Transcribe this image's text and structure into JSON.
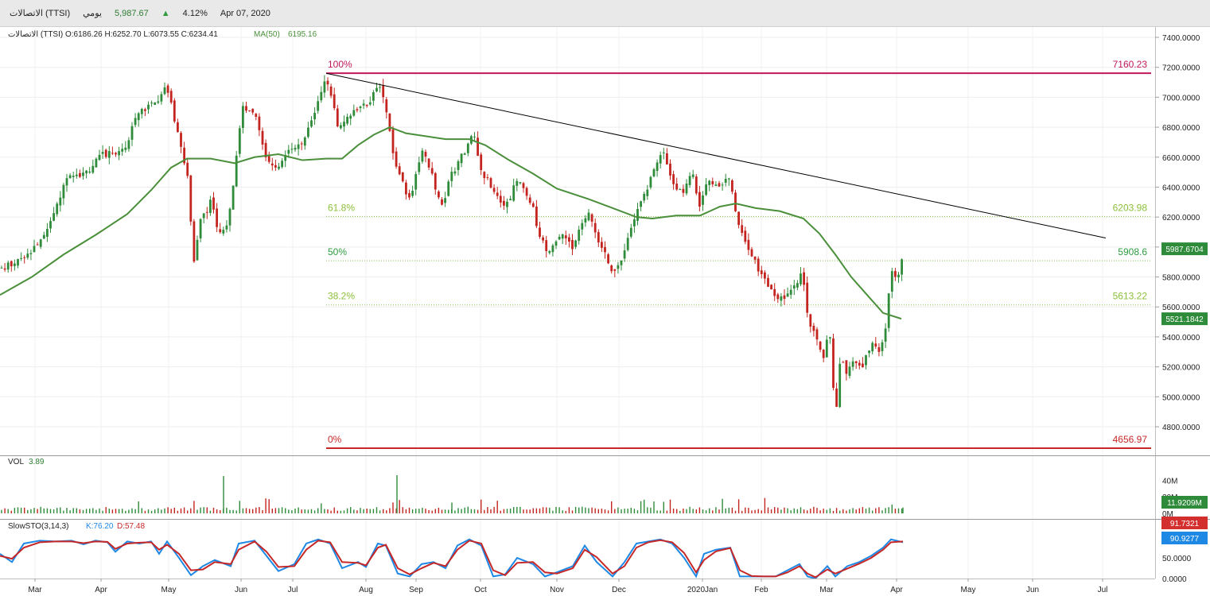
{
  "header": {
    "symbol": "الاتصالات (TTSI)",
    "period": "يومي",
    "last_price": "5,987.67",
    "change_pct": "4.12%",
    "date": "Apr 07, 2020"
  },
  "legend": {
    "ohlc": "الاتصالات (TTSI)  O:6186.26  H:6252.70  L:6073.55  C:6234.41",
    "ma_label": "MA(50)",
    "ma_value": "6195.16"
  },
  "volume_panel": {
    "label": "VOL",
    "value": "3.89",
    "axis_ticks": [
      "40M",
      "20M",
      "0M"
    ],
    "badge": "11.9209M"
  },
  "stoch_panel": {
    "label": "SlowSTO(3,14,3)",
    "k_label": "K:76.20",
    "d_label": "D:57.48",
    "axis_ticks": [
      "50.0000",
      "0.0000"
    ],
    "badge_d": "91.7321",
    "badge_k": "90.9277"
  },
  "colors": {
    "up_candle": "#2e8b3a",
    "down_candle": "#c4241f",
    "ma_line": "#4a8f3a",
    "fib_100": "#c2185b",
    "fib_0": "#c62828",
    "fib_mid": "#8bc34a",
    "trendline": "#000000",
    "stoch_k": "#1e88e5",
    "stoch_d": "#c62828"
  },
  "chart_data": {
    "type": "candlestick",
    "x_axis": {
      "labels": [
        "Mar",
        "Apr",
        "May",
        "Jun",
        "Jul",
        "Aug",
        "Sep",
        "Oct",
        "Nov",
        "Dec",
        "2020Jan",
        "Feb",
        "Mar",
        "Apr",
        "May",
        "Jun",
        "Jul"
      ]
    },
    "y_axis": {
      "ticks": [
        "7400.0000",
        "7200.0000",
        "7000.0000",
        "6800.0000",
        "6600.0000",
        "6400.0000",
        "6200.0000",
        "6000.0000",
        "5800.0000",
        "5600.0000",
        "5400.0000",
        "5200.0000",
        "5000.0000",
        "4800.0000"
      ],
      "range": [
        4600,
        7500
      ],
      "last_price_badge": "5987.6704",
      "ma_badge": "5521.1842"
    },
    "close_path": [
      [
        0,
        5850
      ],
      [
        30,
        5920
      ],
      [
        60,
        6100
      ],
      [
        85,
        6500
      ],
      [
        105,
        6480
      ],
      [
        130,
        6620
      ],
      [
        155,
        6650
      ],
      [
        175,
        6900
      ],
      [
        200,
        6980
      ],
      [
        210,
        7080
      ],
      [
        222,
        6800
      ],
      [
        235,
        6500
      ],
      [
        245,
        5850
      ],
      [
        250,
        6150
      ],
      [
        265,
        6300
      ],
      [
        278,
        6050
      ],
      [
        290,
        6250
      ],
      [
        305,
        6950
      ],
      [
        320,
        6900
      ],
      [
        335,
        6600
      ],
      [
        345,
        6500
      ],
      [
        360,
        6650
      ],
      [
        380,
        6700
      ],
      [
        395,
        6900
      ],
      [
        410,
        7150
      ],
      [
        425,
        6800
      ],
      [
        440,
        6900
      ],
      [
        460,
        6950
      ],
      [
        480,
        7080
      ],
      [
        490,
        6750
      ],
      [
        500,
        6500
      ],
      [
        515,
        6300
      ],
      [
        530,
        6650
      ],
      [
        545,
        6450
      ],
      [
        555,
        6250
      ],
      [
        565,
        6450
      ],
      [
        580,
        6600
      ],
      [
        595,
        6750
      ],
      [
        605,
        6500
      ],
      [
        620,
        6400
      ],
      [
        635,
        6250
      ],
      [
        650,
        6450
      ],
      [
        670,
        6250
      ],
      [
        680,
        6050
      ],
      [
        690,
        5950
      ],
      [
        705,
        6100
      ],
      [
        720,
        6000
      ],
      [
        740,
        6250
      ],
      [
        755,
        6000
      ],
      [
        770,
        5850
      ],
      [
        780,
        5900
      ],
      [
        795,
        6150
      ],
      [
        810,
        6350
      ],
      [
        820,
        6500
      ],
      [
        832,
        6650
      ],
      [
        845,
        6450
      ],
      [
        858,
        6350
      ],
      [
        870,
        6500
      ],
      [
        880,
        6250
      ],
      [
        890,
        6450
      ],
      [
        905,
        6420
      ],
      [
        918,
        6480
      ],
      [
        925,
        6200
      ],
      [
        935,
        6050
      ],
      [
        945,
        5950
      ],
      [
        958,
        5800
      ],
      [
        970,
        5700
      ],
      [
        985,
        5650
      ],
      [
        1000,
        5750
      ],
      [
        1008,
        5850
      ],
      [
        1015,
        5550
      ],
      [
        1025,
        5400
      ],
      [
        1035,
        5250
      ],
      [
        1043,
        5450
      ],
      [
        1050,
        4850
      ],
      [
        1057,
        5300
      ],
      [
        1065,
        5150
      ],
      [
        1075,
        5250
      ],
      [
        1085,
        5200
      ],
      [
        1095,
        5350
      ],
      [
        1105,
        5300
      ],
      [
        1113,
        5450
      ],
      [
        1120,
        5850
      ],
      [
        1128,
        5750
      ],
      [
        1135,
        5988
      ]
    ],
    "ma50": {
      "name": "MA(50)",
      "path": [
        [
          0,
          5680
        ],
        [
          40,
          5800
        ],
        [
          80,
          5950
        ],
        [
          120,
          6080
        ],
        [
          160,
          6220
        ],
        [
          190,
          6380
        ],
        [
          215,
          6530
        ],
        [
          235,
          6590
        ],
        [
          265,
          6590
        ],
        [
          295,
          6560
        ],
        [
          320,
          6600
        ],
        [
          350,
          6620
        ],
        [
          380,
          6580
        ],
        [
          410,
          6590
        ],
        [
          430,
          6590
        ],
        [
          450,
          6680
        ],
        [
          470,
          6750
        ],
        [
          490,
          6800
        ],
        [
          510,
          6760
        ],
        [
          535,
          6740
        ],
        [
          560,
          6720
        ],
        [
          590,
          6720
        ],
        [
          610,
          6680
        ],
        [
          640,
          6580
        ],
        [
          670,
          6490
        ],
        [
          700,
          6390
        ],
        [
          740,
          6320
        ],
        [
          770,
          6260
        ],
        [
          800,
          6200
        ],
        [
          820,
          6190
        ],
        [
          850,
          6210
        ],
        [
          880,
          6210
        ],
        [
          905,
          6270
        ],
        [
          925,
          6290
        ],
        [
          950,
          6260
        ],
        [
          980,
          6240
        ],
        [
          1010,
          6190
        ],
        [
          1030,
          6090
        ],
        [
          1050,
          5950
        ],
        [
          1070,
          5800
        ],
        [
          1090,
          5680
        ],
        [
          1110,
          5560
        ],
        [
          1133,
          5521
        ]
      ]
    },
    "trendline": [
      [
        410,
        7160
      ],
      [
        1390,
        6060
      ]
    ],
    "fibonacci": {
      "x_start": 410,
      "x_end": 1447,
      "levels": [
        {
          "label": "100%",
          "price": 7160.23,
          "price_label": "7160.23",
          "style": "solid"
        },
        {
          "label": "61.8%",
          "price": 6203.98,
          "price_label": "6203.98",
          "style": "dotted"
        },
        {
          "label": "50%",
          "price": 5908.6,
          "price_label": "5908.6",
          "style": "dotted"
        },
        {
          "label": "38.2%",
          "price": 5613.22,
          "price_label": "5613.22",
          "style": "dotted"
        },
        {
          "label": "0%",
          "price": 4656.97,
          "price_label": "4656.97",
          "style": "solid"
        }
      ]
    },
    "volume_ylim": [
      0,
      46
    ],
    "stoch_ylim": [
      0,
      110
    ],
    "stoch_k_path": [
      [
        0,
        60
      ],
      [
        15,
        40
      ],
      [
        30,
        85
      ],
      [
        50,
        92
      ],
      [
        70,
        90
      ],
      [
        90,
        92
      ],
      [
        105,
        83
      ],
      [
        120,
        92
      ],
      [
        135,
        88
      ],
      [
        145,
        65
      ],
      [
        160,
        90
      ],
      [
        175,
        85
      ],
      [
        190,
        90
      ],
      [
        200,
        60
      ],
      [
        210,
        90
      ],
      [
        225,
        50
      ],
      [
        240,
        8
      ],
      [
        255,
        30
      ],
      [
        270,
        45
      ],
      [
        290,
        30
      ],
      [
        300,
        85
      ],
      [
        320,
        92
      ],
      [
        335,
        55
      ],
      [
        350,
        18
      ],
      [
        370,
        35
      ],
      [
        385,
        85
      ],
      [
        400,
        95
      ],
      [
        415,
        85
      ],
      [
        430,
        25
      ],
      [
        450,
        40
      ],
      [
        460,
        28
      ],
      [
        475,
        85
      ],
      [
        485,
        80
      ],
      [
        500,
        12
      ],
      [
        515,
        5
      ],
      [
        530,
        35
      ],
      [
        545,
        40
      ],
      [
        560,
        25
      ],
      [
        575,
        80
      ],
      [
        590,
        95
      ],
      [
        605,
        80
      ],
      [
        620,
        5
      ],
      [
        635,
        10
      ],
      [
        650,
        50
      ],
      [
        670,
        35
      ],
      [
        685,
        5
      ],
      [
        700,
        15
      ],
      [
        720,
        30
      ],
      [
        735,
        80
      ],
      [
        750,
        40
      ],
      [
        770,
        5
      ],
      [
        785,
        40
      ],
      [
        800,
        85
      ],
      [
        815,
        90
      ],
      [
        830,
        95
      ],
      [
        845,
        85
      ],
      [
        860,
        50
      ],
      [
        875,
        5
      ],
      [
        885,
        60
      ],
      [
        900,
        70
      ],
      [
        918,
        75
      ],
      [
        930,
        5
      ],
      [
        945,
        5
      ],
      [
        960,
        5
      ],
      [
        975,
        5
      ],
      [
        990,
        20
      ],
      [
        1005,
        35
      ],
      [
        1015,
        5
      ],
      [
        1025,
        0
      ],
      [
        1040,
        30
      ],
      [
        1050,
        5
      ],
      [
        1065,
        30
      ],
      [
        1080,
        40
      ],
      [
        1095,
        55
      ],
      [
        1110,
        75
      ],
      [
        1120,
        95
      ],
      [
        1135,
        88
      ]
    ],
    "stoch_d_path": [
      [
        0,
        55
      ],
      [
        15,
        48
      ],
      [
        30,
        75
      ],
      [
        50,
        88
      ],
      [
        70,
        90
      ],
      [
        90,
        90
      ],
      [
        105,
        86
      ],
      [
        120,
        90
      ],
      [
        135,
        89
      ],
      [
        145,
        72
      ],
      [
        160,
        85
      ],
      [
        175,
        87
      ],
      [
        190,
        88
      ],
      [
        200,
        70
      ],
      [
        210,
        82
      ],
      [
        225,
        60
      ],
      [
        240,
        20
      ],
      [
        255,
        22
      ],
      [
        270,
        40
      ],
      [
        290,
        35
      ],
      [
        300,
        70
      ],
      [
        320,
        90
      ],
      [
        335,
        65
      ],
      [
        350,
        28
      ],
      [
        370,
        30
      ],
      [
        385,
        70
      ],
      [
        400,
        92
      ],
      [
        415,
        88
      ],
      [
        430,
        40
      ],
      [
        450,
        38
      ],
      [
        460,
        32
      ],
      [
        475,
        75
      ],
      [
        485,
        82
      ],
      [
        500,
        25
      ],
      [
        515,
        10
      ],
      [
        530,
        25
      ],
      [
        545,
        38
      ],
      [
        560,
        30
      ],
      [
        575,
        70
      ],
      [
        590,
        92
      ],
      [
        605,
        85
      ],
      [
        620,
        20
      ],
      [
        635,
        8
      ],
      [
        650,
        38
      ],
      [
        670,
        40
      ],
      [
        685,
        15
      ],
      [
        700,
        12
      ],
      [
        720,
        25
      ],
      [
        735,
        70
      ],
      [
        750,
        52
      ],
      [
        770,
        12
      ],
      [
        785,
        30
      ],
      [
        800,
        75
      ],
      [
        815,
        88
      ],
      [
        830,
        93
      ],
      [
        845,
        88
      ],
      [
        860,
        62
      ],
      [
        875,
        15
      ],
      [
        885,
        45
      ],
      [
        900,
        66
      ],
      [
        918,
        74
      ],
      [
        930,
        20
      ],
      [
        945,
        6
      ],
      [
        960,
        5
      ],
      [
        975,
        5
      ],
      [
        990,
        15
      ],
      [
        1005,
        30
      ],
      [
        1015,
        12
      ],
      [
        1025,
        3
      ],
      [
        1040,
        22
      ],
      [
        1050,
        12
      ],
      [
        1065,
        24
      ],
      [
        1080,
        36
      ],
      [
        1095,
        50
      ],
      [
        1110,
        70
      ],
      [
        1120,
        88
      ],
      [
        1135,
        90
      ]
    ]
  }
}
